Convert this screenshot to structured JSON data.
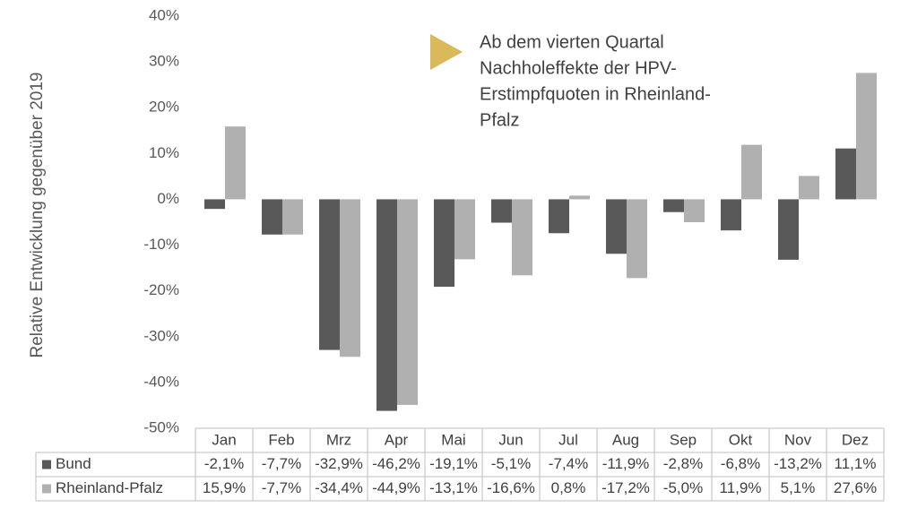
{
  "chart_data": {
    "type": "bar",
    "y_axis_label": "Relative Entwicklung gegenüber 2019",
    "annotation": [
      "Ab dem vierten Quartal",
      "Nachholeffekte der HPV-",
      "Erstimpfquoten in Rheinland-",
      "Pfalz"
    ],
    "categories": [
      "Jan",
      "Feb",
      "Mrz",
      "Apr",
      "Mai",
      "Jun",
      "Jul",
      "Aug",
      "Sep",
      "Okt",
      "Nov",
      "Dez"
    ],
    "series": [
      {
        "name": "Bund",
        "color": "#595959",
        "values": [
          -2.1,
          -7.7,
          -32.9,
          -46.2,
          -19.1,
          -5.1,
          -7.4,
          -11.9,
          -2.8,
          -6.8,
          -13.2,
          11.1
        ],
        "value_labels": [
          "-2,1%",
          "-7,7%",
          "-32,9%",
          "-46,2%",
          "-19,1%",
          "-5,1%",
          "-7,4%",
          "-11,9%",
          "-2,8%",
          "-6,8%",
          "-13,2%",
          "11,1%"
        ]
      },
      {
        "name": "Rheinland-Pfalz",
        "color": "#b0b0b0",
        "values": [
          15.9,
          -7.7,
          -34.4,
          -44.9,
          -13.1,
          -16.6,
          0.8,
          -17.2,
          -5.0,
          11.9,
          5.1,
          27.6
        ],
        "value_labels": [
          "15,9%",
          "-7,7%",
          "-34,4%",
          "-44,9%",
          "-13,1%",
          "-16,6%",
          "0,8%",
          "-17,2%",
          "-5,0%",
          "11,9%",
          "5,1%",
          "27,6%"
        ]
      }
    ],
    "ylim": [
      -50,
      40
    ],
    "yticks": [
      {
        "value": -50,
        "label": "-50%"
      },
      {
        "value": -40,
        "label": "-40%"
      },
      {
        "value": -30,
        "label": "-30%"
      },
      {
        "value": -20,
        "label": "-20%"
      },
      {
        "value": -10,
        "label": "-10%"
      },
      {
        "value": 0,
        "label": "0%"
      },
      {
        "value": 10,
        "label": "10%"
      },
      {
        "value": 20,
        "label": "20%"
      },
      {
        "value": 30,
        "label": "30%"
      },
      {
        "value": 40,
        "label": "40%"
      }
    ],
    "grid": false
  }
}
